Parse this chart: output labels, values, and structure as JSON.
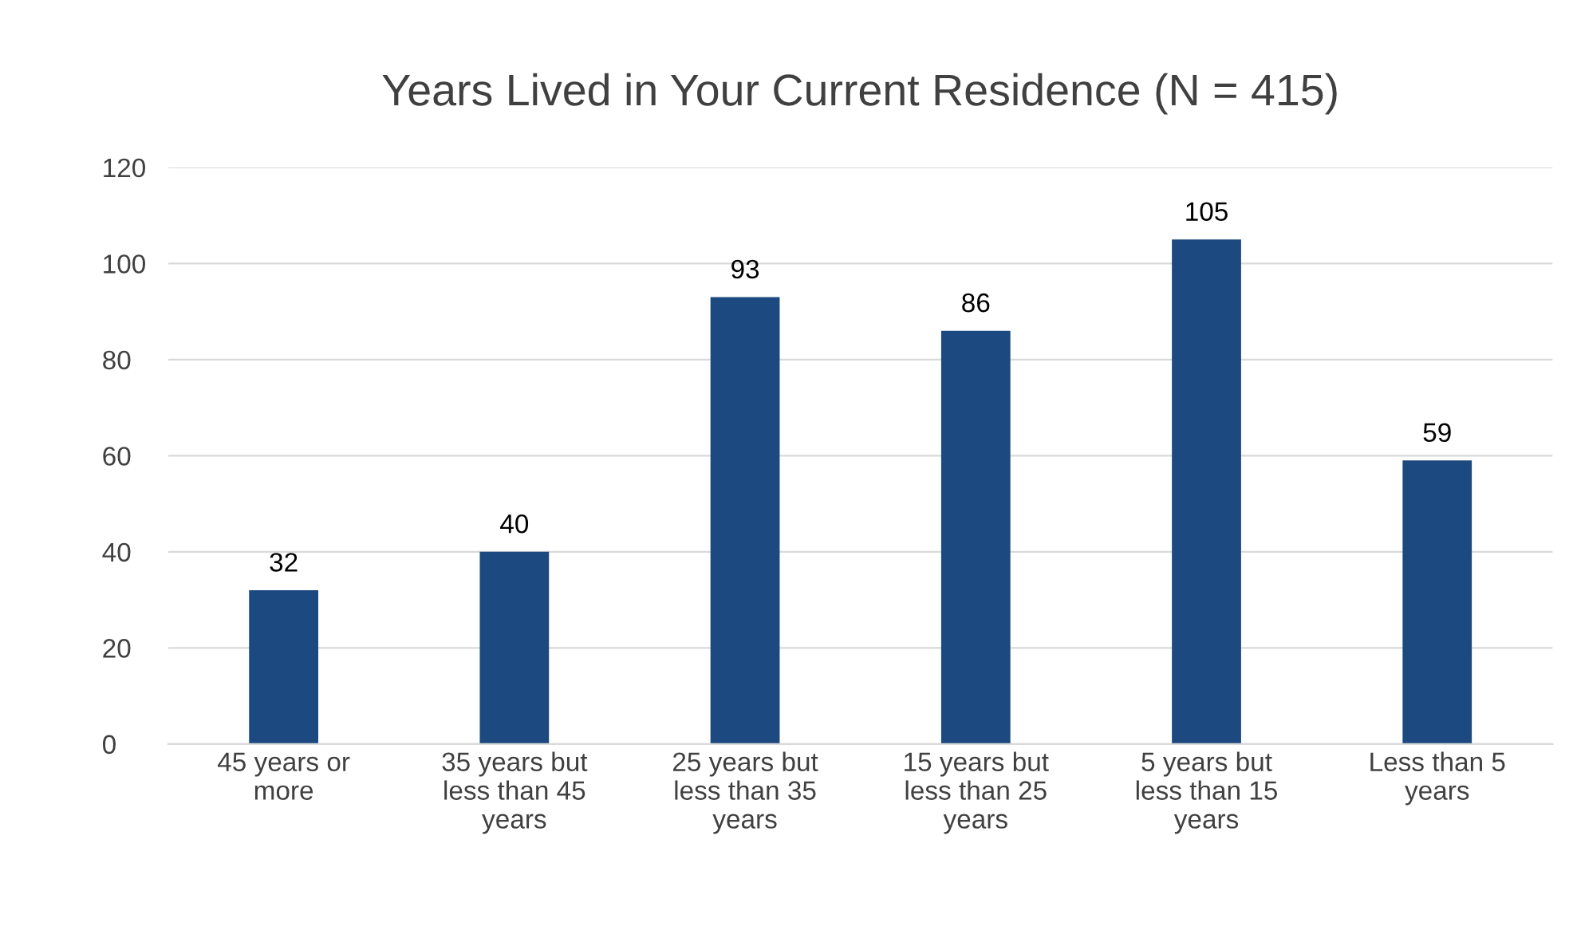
{
  "chart_data": {
    "type": "bar",
    "title": "Years Lived in Your Current Residence (N = 415)",
    "categories": [
      "45 years or more",
      "35 years but less than 45 years",
      "25 years but less than 35 years",
      "15 years but less than 25 years",
      "5 years but less than 15 years",
      "Less than 5 years"
    ],
    "values": [
      32,
      40,
      93,
      86,
      105,
      59
    ],
    "color": "#1c4a80",
    "ylim": [
      0,
      120
    ],
    "yticks": [
      0,
      20,
      40,
      60,
      80,
      100,
      120
    ],
    "grid": "y",
    "data_labels": true
  }
}
